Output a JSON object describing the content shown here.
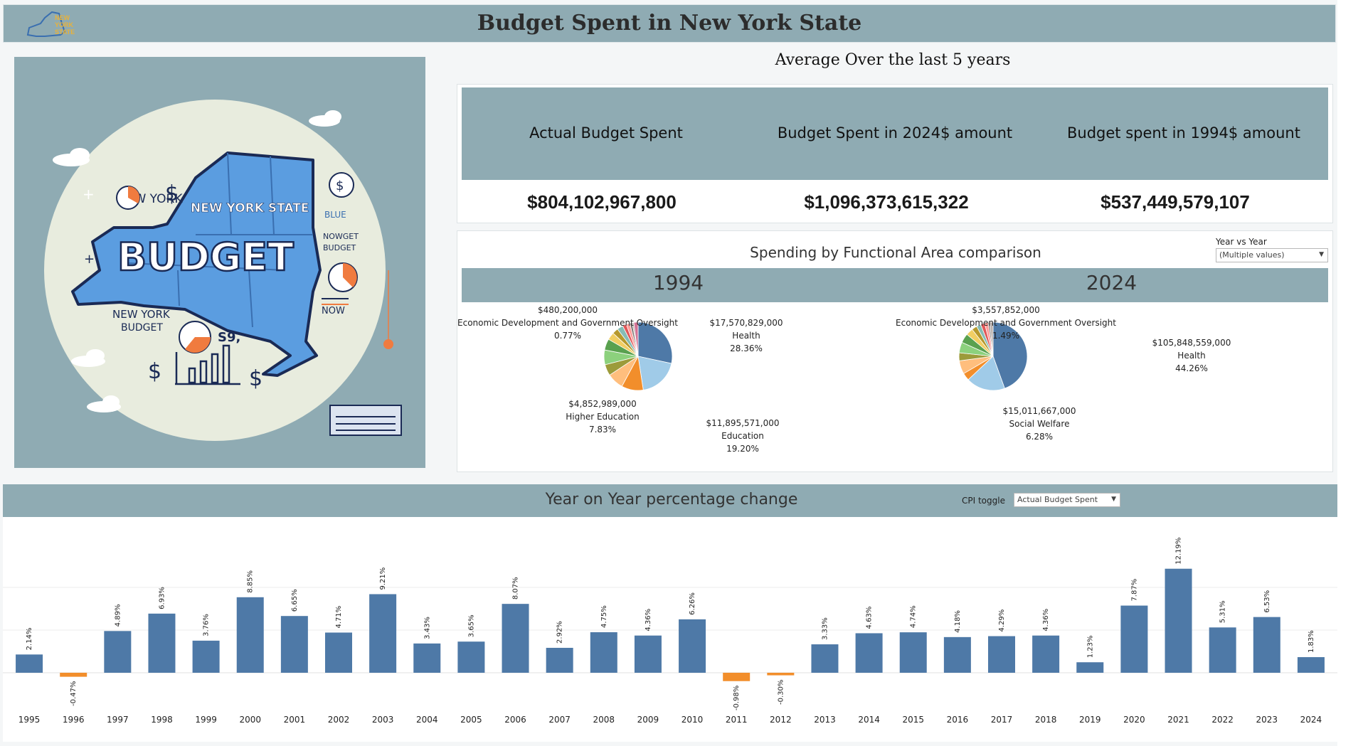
{
  "header": {
    "title": "Budget Spent in New York State",
    "logo_text": [
      "NEW",
      "YORK",
      "STATE"
    ]
  },
  "hero": {
    "text_new_york": "NEW YORK",
    "text_state": "NEW YORK STATE",
    "text_budget": "BUDGET",
    "text_blue": "BLUE",
    "text_nowget": "NOWGET",
    "text_budget_small": "BUDGET",
    "text_now": "NOW",
    "text_ny_budget_1": "NEW YORK",
    "text_ny_budget_2": "BUDGET",
    "text_s9": "S9,",
    "colors": {
      "bg": "#8fabb3",
      "map": "#5b9de0",
      "circle": "#e8ecde",
      "accent": "#f07b3f"
    }
  },
  "kpi": {
    "section_title": "Average Over the last 5 years",
    "columns": [
      {
        "label": "Actual Budget Spent",
        "value": "$804,102,967,800"
      },
      {
        "label": "Budget Spent in 2024$ amount",
        "value": "$1,096,373,615,322"
      },
      {
        "label": "Budget spent in 1994$ amount",
        "value": "$537,449,579,107"
      }
    ]
  },
  "pie_section": {
    "title": "Spending by Functional Area comparison",
    "filter_label": "Year vs Year",
    "filter_value": "(Multiple values)",
    "palette": [
      "#4e79a7",
      "#a0cbe8",
      "#f28e2b",
      "#ffbe7d",
      "#9c9b3a",
      "#8cd17d",
      "#59a14f",
      "#f1ce63",
      "#b6992d",
      "#86bcb6",
      "#e15759",
      "#ff9d9a",
      "#79706e",
      "#bab0ac",
      "#d37295"
    ]
  },
  "chart_data": [
    {
      "type": "pie",
      "title": "1994",
      "slices": [
        {
          "name": "Health",
          "value": 17570829000,
          "percent": 28.36,
          "label_value": "$17,570,829,000",
          "label_pct": "28.36%"
        },
        {
          "name": "Education",
          "value": 11895571000,
          "percent": 19.2,
          "label_value": "$11,895,571,000",
          "label_pct": "19.20%"
        },
        {
          "name": "",
          "value": 6380000000,
          "percent": 10.3
        },
        {
          "name": "Higher Education",
          "value": 4852989000,
          "percent": 7.83,
          "label_value": "$4,852,989,000",
          "label_pct": "7.83%"
        },
        {
          "name": "",
          "value": 3300000000,
          "percent": 5.33
        },
        {
          "name": "",
          "value": 4300000000,
          "percent": 6.94
        },
        {
          "name": "",
          "value": 3300000000,
          "percent": 5.33
        },
        {
          "name": "",
          "value": 2200000000,
          "percent": 3.55
        },
        {
          "name": "",
          "value": 1750000000,
          "percent": 2.82
        },
        {
          "name": "",
          "value": 1750000000,
          "percent": 2.82
        },
        {
          "name": "",
          "value": 1140000000,
          "percent": 1.84
        },
        {
          "name": "",
          "value": 1080000000,
          "percent": 1.74
        },
        {
          "name": "",
          "value": 700000000,
          "percent": 1.13
        },
        {
          "name": "Economic Development and Government Oversight",
          "value": 480200000,
          "percent": 0.77,
          "label_value": "$480,200,000",
          "label_pct": "0.77%"
        },
        {
          "name": "",
          "value": 1240000000,
          "percent": 2.04
        }
      ]
    },
    {
      "type": "pie",
      "title": "2024",
      "slices": [
        {
          "name": "Health",
          "value": 105848559000,
          "percent": 44.26,
          "label_value": "$105,848,559,000",
          "label_pct": "44.26%"
        },
        {
          "name": "",
          "value": 44000000000,
          "percent": 18.4
        },
        {
          "name": "",
          "value": 8500000000,
          "percent": 3.55
        },
        {
          "name": "Social Welfare",
          "value": 15011667000,
          "percent": 6.28,
          "label_value": "$15,011,667,000",
          "label_pct": "6.28%"
        },
        {
          "name": "",
          "value": 9000000000,
          "percent": 3.76
        },
        {
          "name": "",
          "value": 12000000000,
          "percent": 5.02
        },
        {
          "name": "",
          "value": 10500000000,
          "percent": 4.39
        },
        {
          "name": "",
          "value": 8000000000,
          "percent": 3.35
        },
        {
          "name": "",
          "value": 6000000000,
          "percent": 2.51
        },
        {
          "name": "",
          "value": 5000000000,
          "percent": 2.09
        },
        {
          "name": "",
          "value": 4500000000,
          "percent": 1.88
        },
        {
          "name": "",
          "value": 4000000000,
          "percent": 1.67
        },
        {
          "name": "",
          "value": 2000000000,
          "percent": 0.84
        },
        {
          "name": "Economic Development and Government Oversight",
          "value": 3557852000,
          "percent": 1.49,
          "label_value": "$3,557,852,000",
          "label_pct": "1.49%"
        }
      ]
    },
    {
      "type": "bar",
      "title": "Year on Year percentage change",
      "filter_label": "CPI toggle",
      "filter_value": "Actual Budget Spent",
      "categories": [
        "1995",
        "1996",
        "1997",
        "1998",
        "1999",
        "2000",
        "2001",
        "2002",
        "2003",
        "2004",
        "2005",
        "2006",
        "2007",
        "2008",
        "2009",
        "2010",
        "2011",
        "2012",
        "2013",
        "2014",
        "2015",
        "2016",
        "2017",
        "2018",
        "2019",
        "2020",
        "2021",
        "2022",
        "2023",
        "2024"
      ],
      "values": [
        2.14,
        -0.47,
        4.89,
        6.93,
        3.76,
        8.85,
        6.65,
        4.71,
        9.21,
        3.43,
        3.65,
        8.07,
        2.92,
        4.75,
        4.36,
        6.26,
        -0.98,
        -0.3,
        3.33,
        4.63,
        4.74,
        4.18,
        4.29,
        4.36,
        1.23,
        7.87,
        12.19,
        5.31,
        6.53,
        1.83
      ],
      "value_labels": [
        "2.14%",
        "-0.47%",
        "4.89%",
        "6.93%",
        "3.76%",
        "8.85%",
        "6.65%",
        "4.71%",
        "9.21%",
        "3.43%",
        "3.65%",
        "8.07%",
        "2.92%",
        "4.75%",
        "4.36%",
        "6.26%",
        "-0.98%",
        "-0.30%",
        "3.33%",
        "4.63%",
        "4.74%",
        "4.18%",
        "4.29%",
        "4.36%",
        "1.23%",
        "7.87%",
        "12.19%",
        "5.31%",
        "6.53%",
        "1.83%"
      ],
      "ylim": [
        -1.5,
        12.5
      ],
      "gridlines": [
        5,
        10
      ],
      "colors": {
        "positive": "#4e79a7",
        "negative": "#f28e2b"
      }
    }
  ]
}
